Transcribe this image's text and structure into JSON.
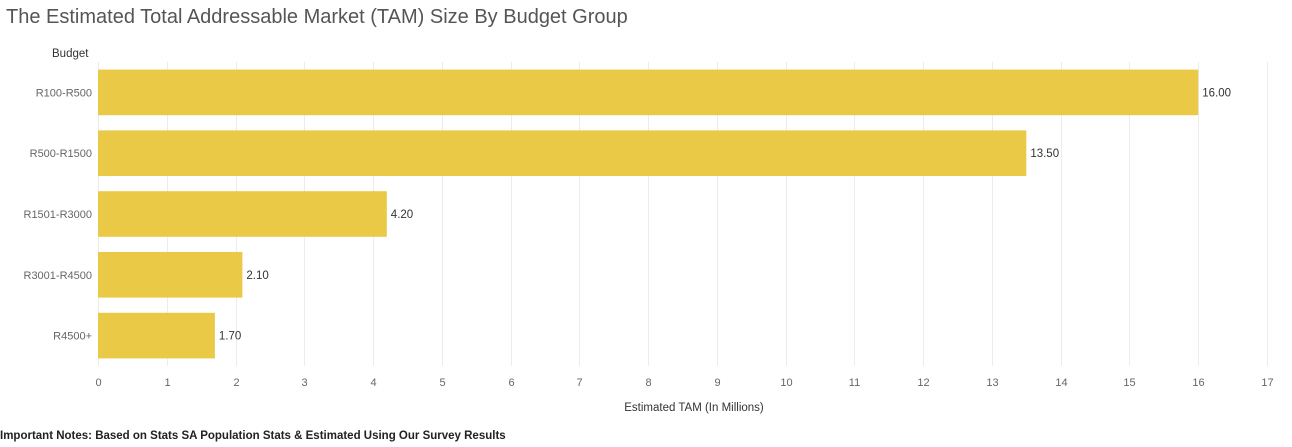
{
  "chart_data": {
    "type": "bar",
    "orientation": "horizontal",
    "title": "The Estimated Total Addressable Market (TAM) Size By Budget Group",
    "ylabel": "Budget",
    "xlabel": "Estimated TAM (In Millions)",
    "categories": [
      "R100-R500",
      "R500-R1500",
      "R1501-R3000",
      "R3001-R4500",
      "R4500+"
    ],
    "values": [
      16.0,
      13.5,
      4.2,
      2.1,
      1.7
    ],
    "data_labels": [
      "16.00",
      "13.50",
      "4.20",
      "2.10",
      "1.70"
    ],
    "xlim": [
      0,
      17
    ],
    "x_ticks": [
      0,
      1,
      2,
      3,
      4,
      5,
      6,
      7,
      8,
      9,
      10,
      11,
      12,
      13,
      14,
      15,
      16,
      17
    ],
    "grid": true,
    "legend": "none",
    "bar_color": "#EAC946"
  },
  "note": "Important Notes: Based on Stats SA Population Stats & Estimated Using Our Survey Results"
}
